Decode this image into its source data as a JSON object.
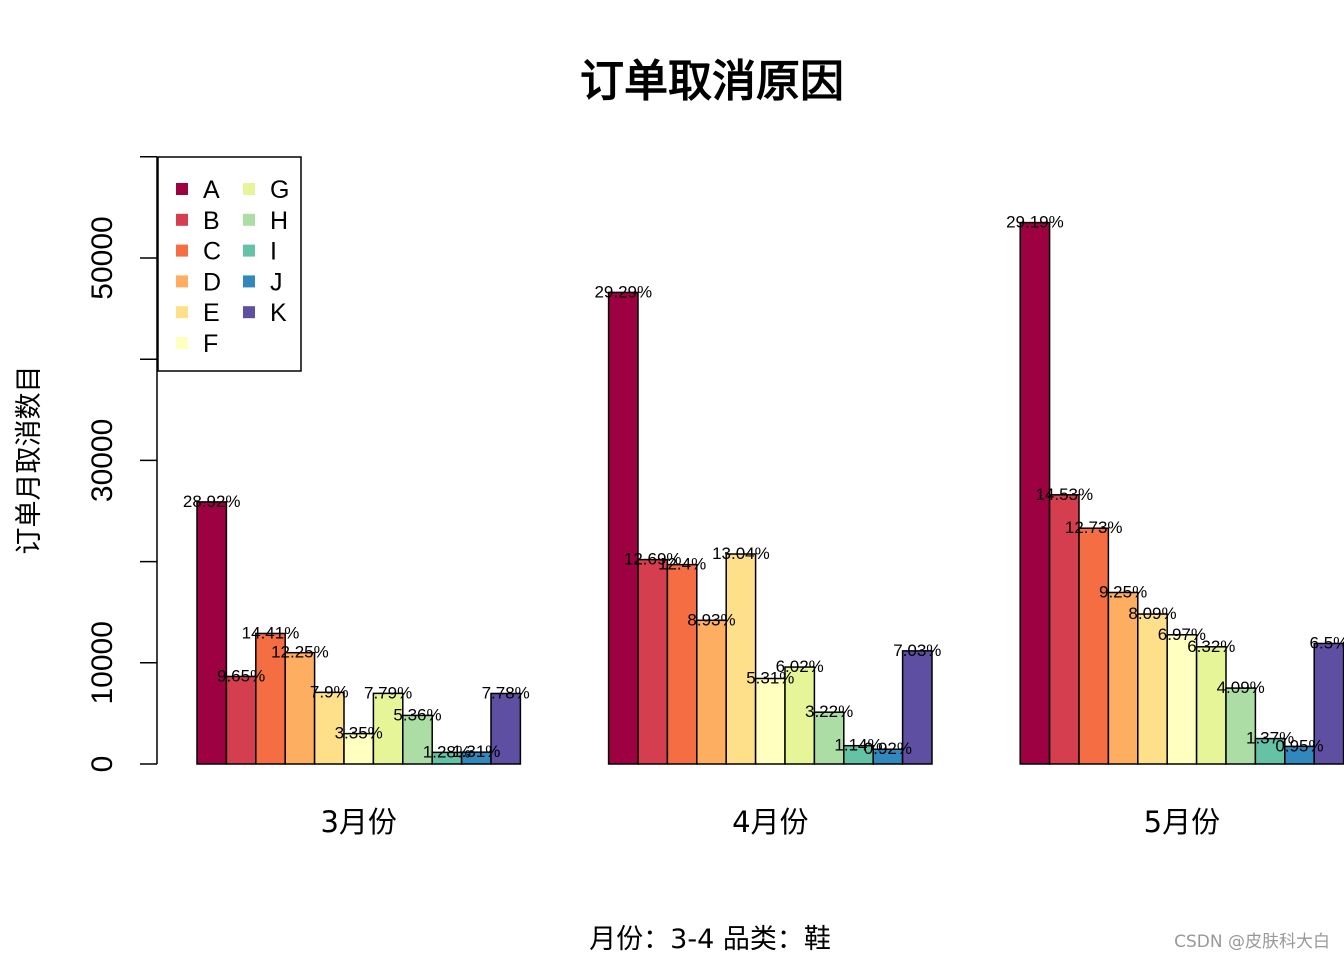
{
  "chart_data": {
    "type": "bar",
    "title": "订单取消原因",
    "xlabel": "月份：3-4 品类：鞋",
    "ylabel": "订单月取消数目",
    "ylim": [
      0,
      60000
    ],
    "yticks": [
      0,
      10000,
      30000,
      50000
    ],
    "ytick_labels": [
      "0",
      "10000",
      "30000",
      "50000"
    ],
    "categories": [
      "3月份",
      "4月份",
      "5月份"
    ],
    "legend_position": "top-left",
    "grid": false,
    "series": [
      {
        "name": "A",
        "color": "#9E0142",
        "values": [
          25900,
          46600,
          53500
        ],
        "labels": [
          "28.92%",
          "29.29%",
          "29.19%"
        ]
      },
      {
        "name": "B",
        "color": "#D53E4F",
        "values": [
          8650,
          20200,
          26600
        ],
        "labels": [
          "9.65%",
          "12.69%",
          "14.53%"
        ]
      },
      {
        "name": "C",
        "color": "#F46D43",
        "values": [
          12900,
          19700,
          23300
        ],
        "labels": [
          "14.41%",
          "12.4%",
          "12.73%"
        ]
      },
      {
        "name": "D",
        "color": "#FDAE61",
        "values": [
          11000,
          14200,
          16950
        ],
        "labels": [
          "12.25%",
          "8.93%",
          "9.25%"
        ]
      },
      {
        "name": "E",
        "color": "#FEE08B",
        "values": [
          7080,
          20750,
          14820
        ],
        "labels": [
          "7.9%",
          "13.04%",
          "8.09%"
        ]
      },
      {
        "name": "F",
        "color": "#FFFFBF",
        "values": [
          3000,
          8450,
          12770
        ],
        "labels": [
          "3.35%",
          "5.31%",
          "6.97%"
        ]
      },
      {
        "name": "G",
        "color": "#E6F598",
        "values": [
          6980,
          9580,
          11580
        ],
        "labels": [
          "7.79%",
          "6.02%",
          "6.32%"
        ]
      },
      {
        "name": "H",
        "color": "#ABDDA4",
        "values": [
          4800,
          5120,
          7500
        ],
        "labels": [
          "5.36%",
          "3.22%",
          "4.09%"
        ]
      },
      {
        "name": "I",
        "color": "#66C2A5",
        "values": [
          1150,
          1810,
          2510
        ],
        "labels": [
          "1.28%",
          "1.14%",
          "1.37%"
        ]
      },
      {
        "name": "J",
        "color": "#3288BD",
        "values": [
          1170,
          1460,
          1740
        ],
        "labels": [
          "1.31%",
          "0.92%",
          "0.95%"
        ]
      },
      {
        "name": "K",
        "color": "#5E4FA2",
        "values": [
          6970,
          11180,
          11910
        ],
        "labels": [
          "7.78%",
          "7.03%",
          "6.5%"
        ]
      }
    ]
  },
  "watermark": "CSDN @皮肤科大白"
}
